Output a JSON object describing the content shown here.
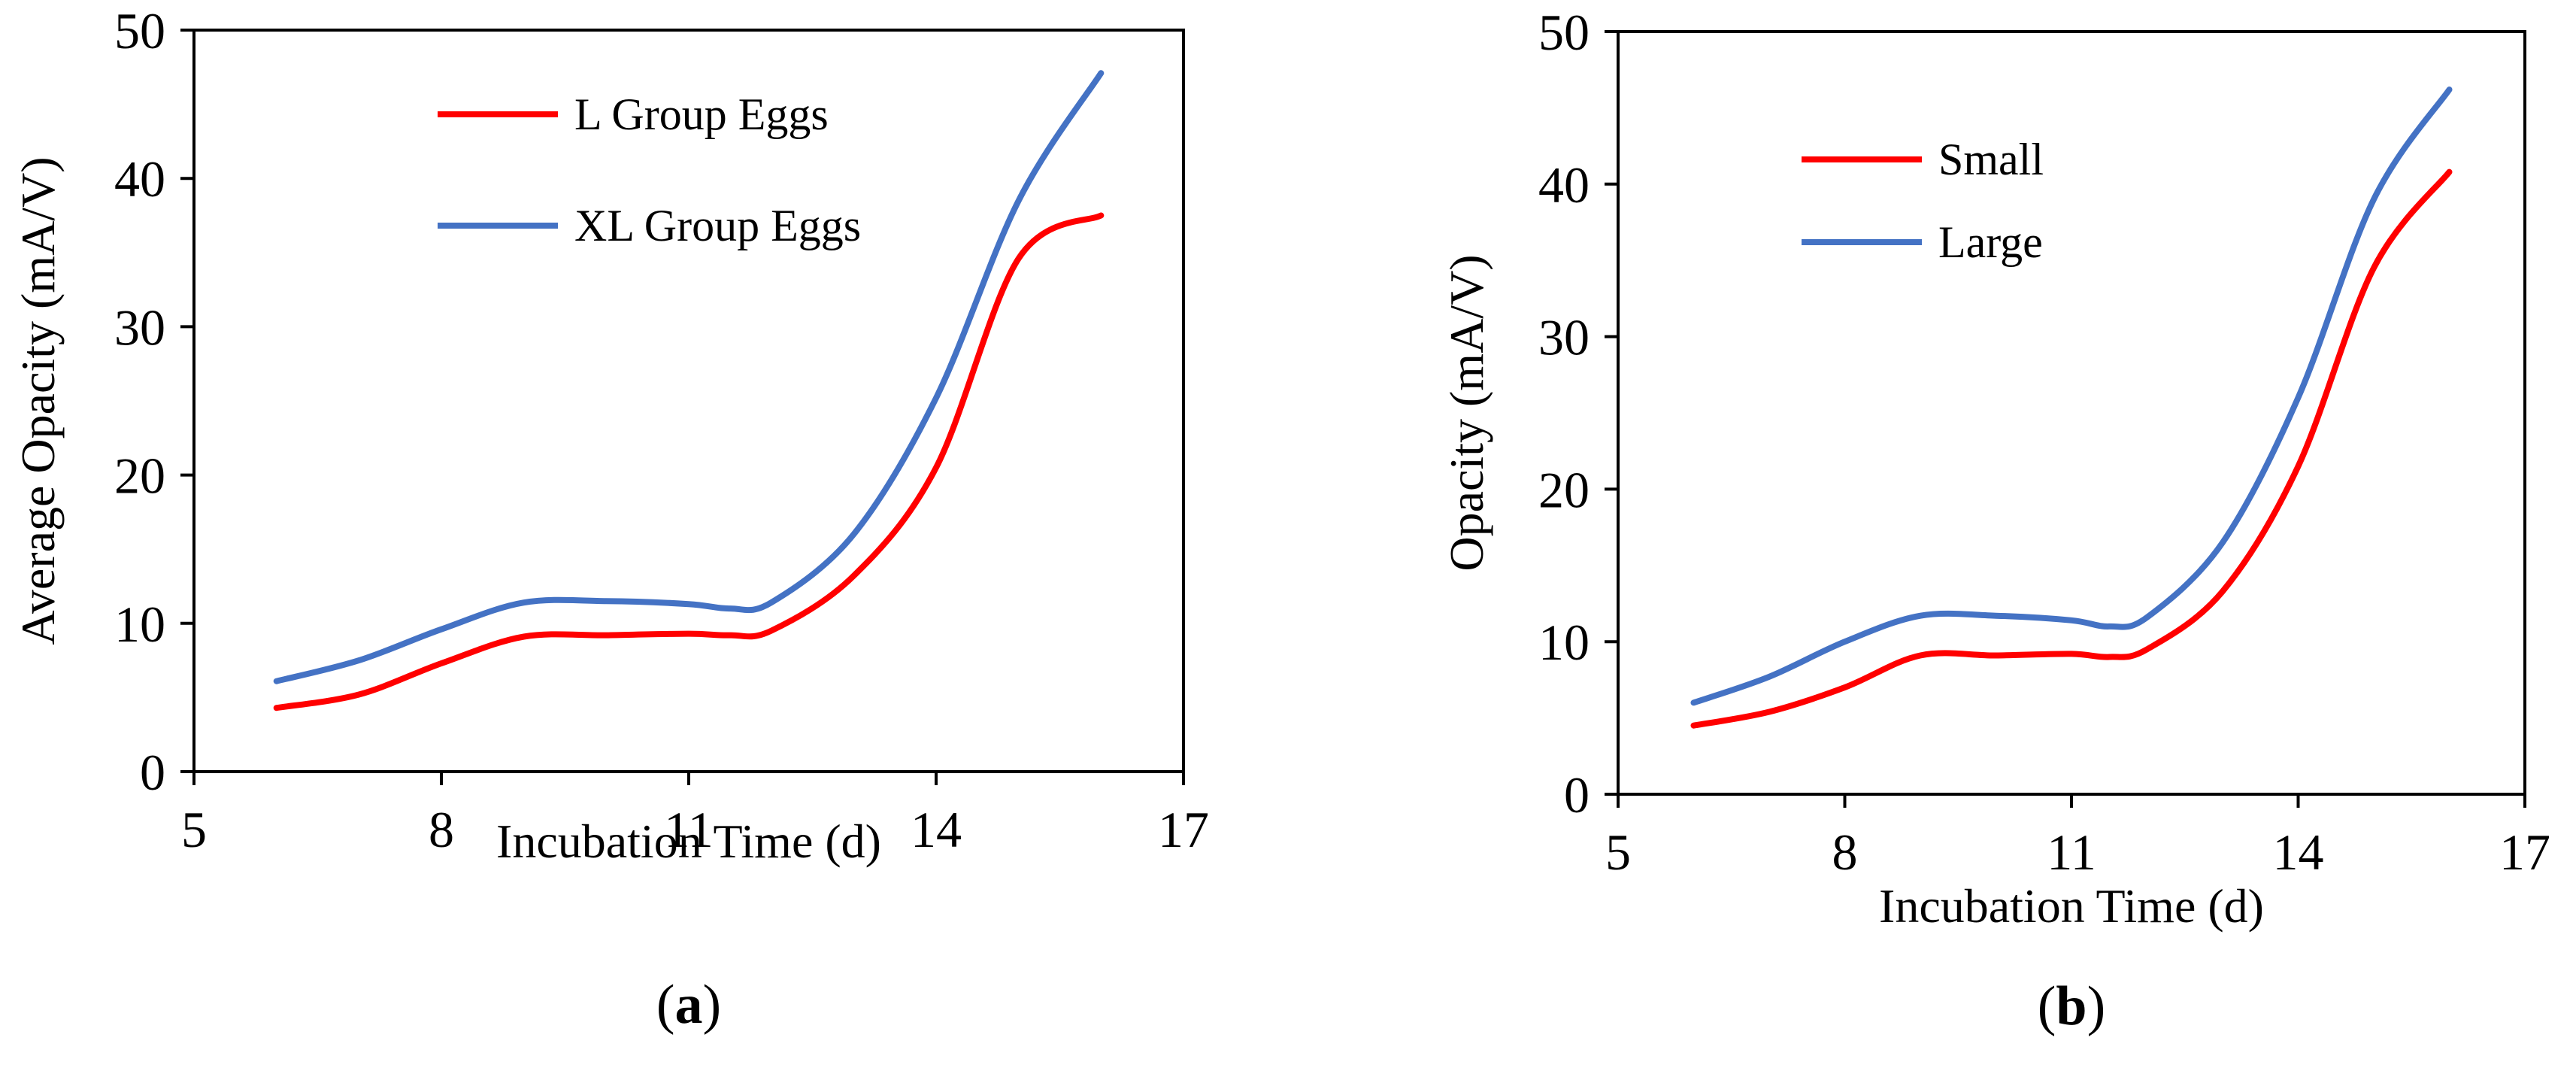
{
  "colors": {
    "red_series": "#ff0000",
    "blue_series": "#4472c4",
    "axis": "#000000"
  },
  "chart_data": [
    {
      "type": "line",
      "panel_label": "a",
      "title": "",
      "xlabel": "Incubation Time (d)",
      "ylabel": "Average Opacity (mA/V)",
      "xlim": [
        5,
        17
      ],
      "ylim": [
        0,
        50
      ],
      "xticks": [
        5,
        8,
        11,
        14,
        17
      ],
      "yticks": [
        0,
        10,
        20,
        30,
        40,
        50
      ],
      "grid": false,
      "legend_position": "top-left",
      "x": [
        6,
        7,
        8,
        9,
        10,
        11,
        11.5,
        12,
        13,
        14,
        15,
        16
      ],
      "series": [
        {
          "name": "L Group Eggs",
          "color": "#ff0000",
          "values": [
            4.3,
            5.2,
            7.3,
            9.1,
            9.2,
            9.3,
            9.2,
            9.5,
            13.2,
            20.5,
            34.6,
            37.5
          ]
        },
        {
          "name": "XL Group Eggs",
          "color": "#4472c4",
          "values": [
            6.1,
            7.5,
            9.6,
            11.4,
            11.5,
            11.3,
            11.0,
            11.4,
            16.0,
            25.2,
            38.5,
            47.1
          ]
        }
      ]
    },
    {
      "type": "line",
      "panel_label": "b",
      "title": "",
      "xlabel": "Incubation Time (d)",
      "ylabel": "Opacity (mA/V)",
      "xlim": [
        5,
        17
      ],
      "ylim": [
        0,
        50
      ],
      "xticks": [
        5,
        8,
        11,
        14,
        17
      ],
      "yticks": [
        0,
        10,
        20,
        30,
        40,
        50
      ],
      "grid": false,
      "legend_position": "top-left",
      "x": [
        6,
        7,
        8,
        9,
        10,
        11,
        11.5,
        12,
        13,
        14,
        15,
        16
      ],
      "series": [
        {
          "name": "Small",
          "color": "#ff0000",
          "values": [
            4.5,
            5.4,
            7.0,
            9.1,
            9.1,
            9.2,
            9.0,
            9.5,
            13.3,
            21.5,
            34.5,
            40.8
          ]
        },
        {
          "name": "Large",
          "color": "#4472c4",
          "values": [
            6.0,
            7.7,
            10.0,
            11.7,
            11.7,
            11.4,
            11.0,
            11.6,
            16.5,
            26.0,
            39.0,
            46.2
          ]
        }
      ]
    }
  ]
}
